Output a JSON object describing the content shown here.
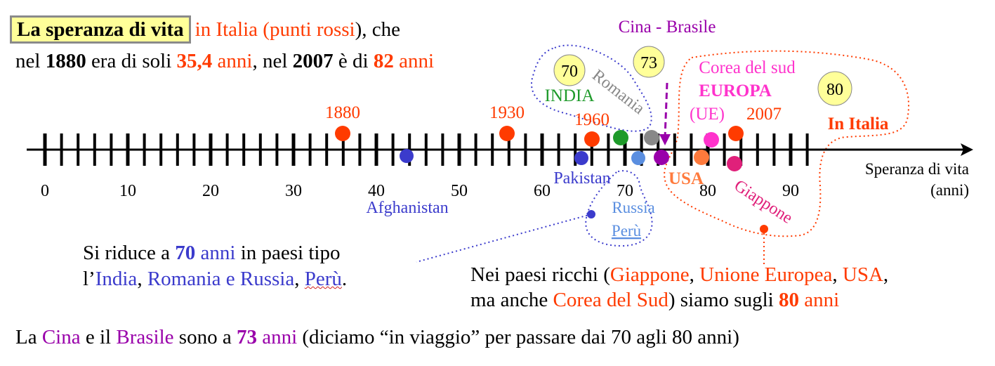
{
  "header": {
    "title": "La speranza di vita",
    "t1": "in Italia",
    "t2": "(",
    "t3": "punti rossi",
    "t4": "), che",
    "l2_a": "nel",
    "l2_b": "1880",
    "l2_c": "era di soli",
    "l2_d": "35,4",
    "l2_e": "anni",
    "l2_f": ", nel",
    "l2_g": "2007",
    "l2_h": "è di",
    "l2_i": "82",
    "l2_j": "anni"
  },
  "axis": {
    "title_1": "Speranza di vita",
    "title_2": "(anni)",
    "ticks": [
      0,
      10,
      20,
      30,
      40,
      50,
      60,
      70,
      80,
      90
    ]
  },
  "years": {
    "y1880": "1880",
    "y1930": "1930",
    "y1960": "1960",
    "y2007": "2007"
  },
  "bubbles": {
    "b70": "70",
    "b73": "73",
    "b80": "80"
  },
  "labels": {
    "cina_brasile": "Cina - Brasile",
    "india": "INDIA",
    "romania": "Romania",
    "corea": "Corea del sud",
    "europa": "EUROPA",
    "ue": "(UE)",
    "in_italia": "In Italia",
    "pakistan": "Pakistan",
    "afghanistan": "Afghanistan",
    "usa": "USA",
    "giappone": "Giappone",
    "russia": "Russia",
    "peru": "Perù"
  },
  "note_left": {
    "a": "Si riduce a",
    "b": "70",
    "c": "anni",
    "d": "in paesi tipo",
    "e": "l’",
    "f": "India",
    "g": ",",
    "h": "Romania e Russia",
    "i": ",",
    "j": "Perù",
    "k": "."
  },
  "note_right": {
    "a": "Nei paesi ricchi (",
    "b": "Giappone",
    "c": ",",
    "d": "Unione Europea",
    "e": ",",
    "f": "USA",
    "g": ",",
    "h": "ma anche",
    "i": "Corea del Sud",
    "j": ") siamo sugli",
    "k": "80",
    "l": "anni"
  },
  "footer": {
    "a": "La",
    "b": "Cina",
    "c": "e il",
    "d": "Brasile",
    "e": "sono a",
    "f": "73",
    "g": "anni",
    "h": "(diciamo “in viaggio” per passare dai 70 agli 80 anni)"
  },
  "colors": {
    "red": "#ff3b00",
    "blue": "#3b3bcc",
    "green": "#1e9a2a",
    "gray": "#888888",
    "lightblue": "#5a8ee0",
    "purple": "#9900aa",
    "orange": "#ff7a3c",
    "pink": "#ff33cc",
    "magenta": "#e0207a",
    "yellow": "#ffff99"
  }
}
